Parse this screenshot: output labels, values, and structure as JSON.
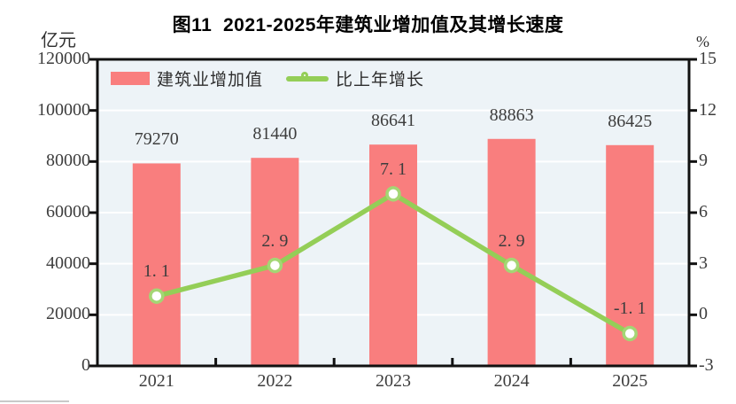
{
  "title": "图11  2021-2025年建筑业增加值及其增长速度",
  "axis_units": {
    "left": "亿元",
    "right": "%"
  },
  "legend": [
    {
      "label": "建筑业增加值",
      "type": "bar"
    },
    {
      "label": "比上年增长",
      "type": "line"
    }
  ],
  "colors": {
    "bar": "#f97e7e",
    "line": "#94ce57",
    "marker_ring": "#a4d674",
    "plot_bg": "#edf3f7",
    "gridline": "#ffffff",
    "axis": "#111111",
    "text": "#3d3d3d"
  },
  "chart_data": {
    "type": "bar",
    "subtype": "bar+line combo, dual axis",
    "title": "图11  2021-2025年建筑业增加值及其增长速度",
    "categories": [
      "2021",
      "2022",
      "2023",
      "2024",
      "2025"
    ],
    "series": [
      {
        "name": "建筑业增加值",
        "type": "bar",
        "axis": "left",
        "unit": "亿元",
        "values": [
          79270,
          81440,
          86641,
          88863,
          86425
        ],
        "labels": [
          "79270",
          "81440",
          "86641",
          "88863",
          "86425"
        ]
      },
      {
        "name": "比上年增长",
        "type": "line",
        "axis": "right",
        "unit": "%",
        "values": [
          1.1,
          2.9,
          7.1,
          2.9,
          -1.1
        ],
        "labels": [
          "1. 1",
          "2. 9",
          "7. 1",
          "2. 9",
          "-1. 1"
        ]
      }
    ],
    "left_axis": {
      "label": "亿元",
      "min": 0,
      "max": 120000,
      "ticks": [
        0,
        20000,
        40000,
        60000,
        80000,
        100000,
        120000
      ],
      "tick_labels": [
        "0",
        "20000",
        "40000",
        "60000",
        "80000",
        "100000",
        "120000"
      ]
    },
    "right_axis": {
      "label": "%",
      "min": -3,
      "max": 15,
      "ticks": [
        -3,
        0,
        3,
        6,
        9,
        12,
        15
      ],
      "tick_labels": [
        "-3",
        "0",
        "3",
        "6",
        "9",
        "12",
        "15"
      ]
    },
    "grid": "horizontal white lines on",
    "legend_position": "top-left inside plot"
  }
}
